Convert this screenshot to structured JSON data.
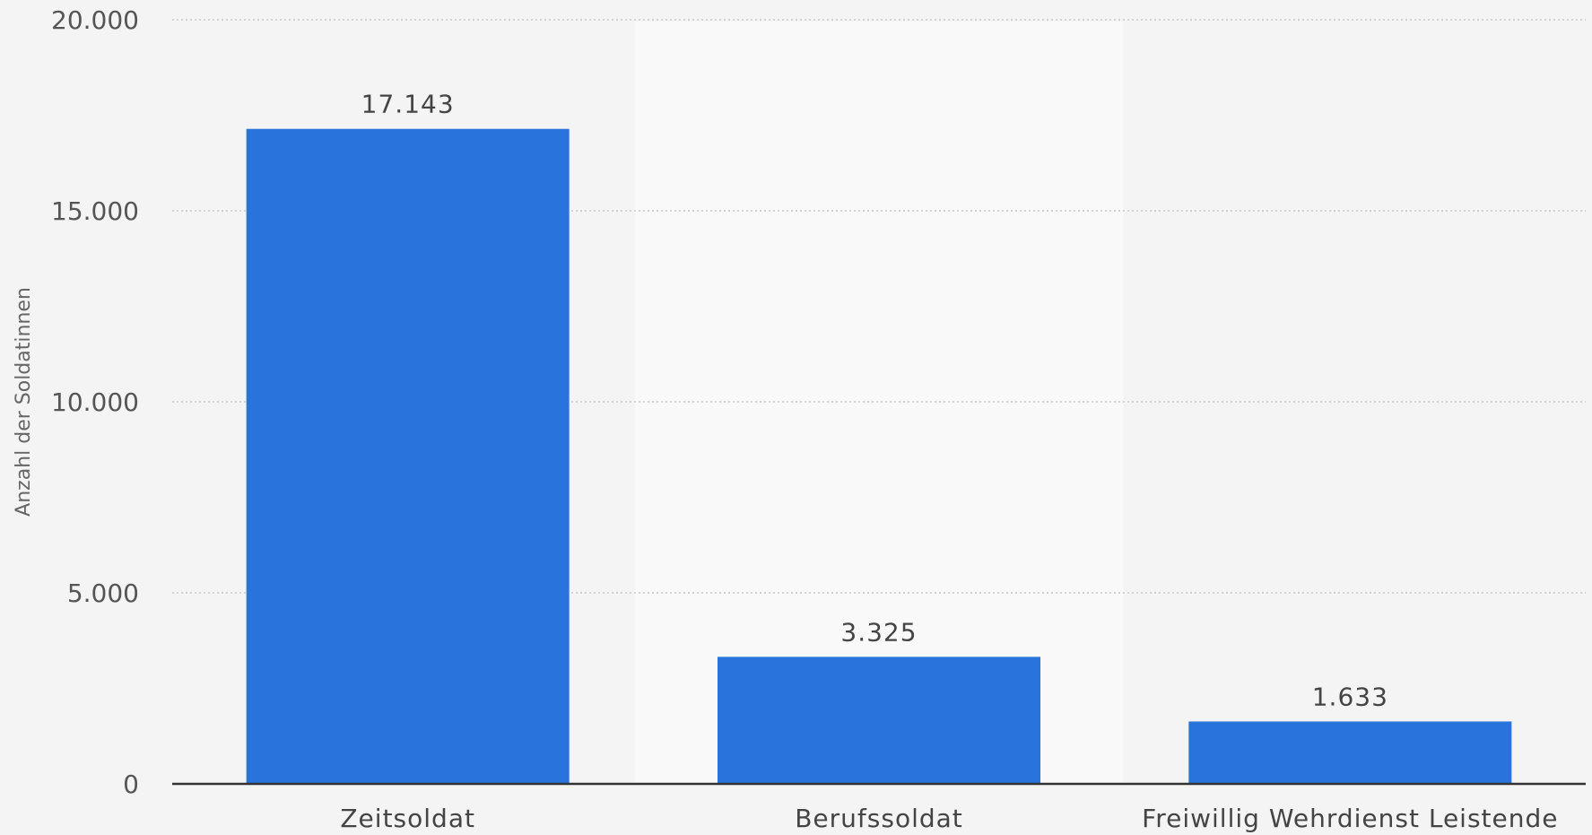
{
  "chart_data": {
    "type": "bar",
    "categories": [
      "Zeitsoldat",
      "Berufssoldat",
      "Freiwillig Wehrdienst Leistende"
    ],
    "values": [
      17143,
      3325,
      1633
    ],
    "value_labels": [
      "17.143",
      "3.325",
      "1.633"
    ],
    "title": "",
    "xlabel": "",
    "ylabel": "Anzahl der Soldatinnen",
    "ylim": [
      0,
      20000
    ],
    "yticks": [
      0,
      5000,
      10000,
      15000,
      20000
    ],
    "ytick_labels": [
      "0",
      "5.000",
      "10.000",
      "15.000",
      "20.000"
    ],
    "grid": true,
    "legend": "none",
    "colors": {
      "bar": "#2874dc",
      "background": "#f4f4f4",
      "band": "#f9f9f9",
      "grid": "#c8c8c8",
      "axis": "#333333"
    }
  }
}
